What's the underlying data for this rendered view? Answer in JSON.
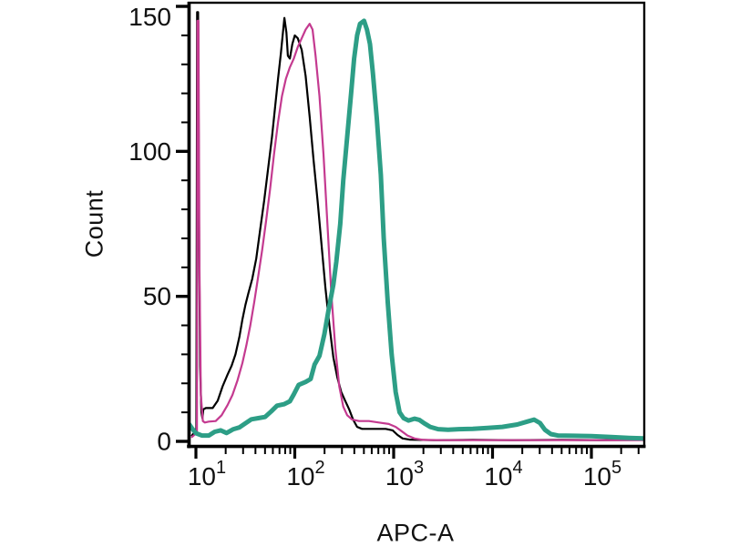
{
  "page": {
    "background": "#ffffff"
  },
  "chart_data": {
    "type": "line",
    "chart_kind": "flow-cytometry-histogram-overlay",
    "title": "",
    "xlabel": "APC-A",
    "ylabel": "Count",
    "x_scale": "log10",
    "x_tick_label_base": "10",
    "x_decade_exponents": [
      1,
      2,
      3,
      4,
      5
    ],
    "x_minor_multiples": [
      2,
      3,
      4,
      5,
      6,
      7,
      8,
      9
    ],
    "xlim_log10": [
      0.926,
      5.576
    ],
    "ylim": [
      0,
      150
    ],
    "y_major_ticks": [
      0,
      50,
      100,
      150
    ],
    "y_minor_step": 10,
    "grid": false,
    "frame": true,
    "legend": null,
    "axis_color": "#000000",
    "tick_label_color": "#111111",
    "series": [
      {
        "name": "black-control",
        "color": "#000000",
        "line_width": 2.2,
        "points_log10x_count": [
          [
            0.96,
            2
          ],
          [
            1.005,
            4
          ],
          [
            1.012,
            148
          ],
          [
            1.022,
            148
          ],
          [
            1.032,
            70
          ],
          [
            1.042,
            26
          ],
          [
            1.055,
            10
          ],
          [
            1.065,
            8
          ],
          [
            1.075,
            11
          ],
          [
            1.1,
            11.5
          ],
          [
            1.17,
            11.5
          ],
          [
            1.22,
            14
          ],
          [
            1.27,
            19
          ],
          [
            1.32,
            23
          ],
          [
            1.36,
            26
          ],
          [
            1.4,
            30
          ],
          [
            1.44,
            36
          ],
          [
            1.47,
            42
          ],
          [
            1.5,
            47
          ],
          [
            1.53,
            51
          ],
          [
            1.57,
            56
          ],
          [
            1.61,
            63
          ],
          [
            1.65,
            73
          ],
          [
            1.69,
            83
          ],
          [
            1.73,
            94
          ],
          [
            1.77,
            105
          ],
          [
            1.8,
            115
          ],
          [
            1.83,
            125
          ],
          [
            1.86,
            134
          ],
          [
            1.88,
            141
          ],
          [
            1.895,
            146
          ],
          [
            1.915,
            141
          ],
          [
            1.93,
            133
          ],
          [
            1.95,
            132
          ],
          [
            1.975,
            137
          ],
          [
            2.0,
            140
          ],
          [
            2.03,
            139
          ],
          [
            2.07,
            135
          ],
          [
            2.11,
            126
          ],
          [
            2.15,
            112
          ],
          [
            2.19,
            97
          ],
          [
            2.23,
            83
          ],
          [
            2.27,
            68
          ],
          [
            2.31,
            53
          ],
          [
            2.35,
            40
          ],
          [
            2.39,
            29
          ],
          [
            2.43,
            22
          ],
          [
            2.47,
            17
          ],
          [
            2.51,
            14
          ],
          [
            2.55,
            11
          ],
          [
            2.59,
            7.5
          ],
          [
            2.63,
            5
          ],
          [
            2.68,
            4.3
          ],
          [
            2.8,
            4.3
          ],
          [
            2.92,
            4.3
          ],
          [
            2.99,
            3.8
          ],
          [
            3.04,
            2.2
          ],
          [
            3.09,
            1
          ],
          [
            3.16,
            0.6
          ],
          [
            3.4,
            0.4
          ],
          [
            3.8,
            0.5
          ],
          [
            4.2,
            0.4
          ],
          [
            4.7,
            0.5
          ],
          [
            5.1,
            0.4
          ],
          [
            5.55,
            0.5
          ]
        ]
      },
      {
        "name": "magenta-sample",
        "color": "#c43a90",
        "line_width": 2.2,
        "points_log10x_count": [
          [
            0.96,
            1.5
          ],
          [
            1.01,
            3
          ],
          [
            1.016,
            145
          ],
          [
            1.026,
            145
          ],
          [
            1.036,
            60
          ],
          [
            1.05,
            16
          ],
          [
            1.07,
            7
          ],
          [
            1.09,
            6.5
          ],
          [
            1.13,
            6.8
          ],
          [
            1.2,
            7
          ],
          [
            1.26,
            9
          ],
          [
            1.32,
            12.5
          ],
          [
            1.37,
            16
          ],
          [
            1.42,
            21
          ],
          [
            1.47,
            27
          ],
          [
            1.51,
            33
          ],
          [
            1.55,
            40
          ],
          [
            1.59,
            48
          ],
          [
            1.63,
            57
          ],
          [
            1.67,
            66
          ],
          [
            1.71,
            76
          ],
          [
            1.75,
            87
          ],
          [
            1.79,
            99
          ],
          [
            1.83,
            110
          ],
          [
            1.87,
            119
          ],
          [
            1.91,
            125
          ],
          [
            1.95,
            129
          ],
          [
            1.99,
            132
          ],
          [
            2.03,
            136
          ],
          [
            2.07,
            139
          ],
          [
            2.11,
            142
          ],
          [
            2.15,
            144
          ],
          [
            2.18,
            142
          ],
          [
            2.21,
            133
          ],
          [
            2.25,
            119
          ],
          [
            2.29,
            99
          ],
          [
            2.33,
            75
          ],
          [
            2.37,
            51
          ],
          [
            2.41,
            32
          ],
          [
            2.45,
            19
          ],
          [
            2.49,
            12
          ],
          [
            2.53,
            9
          ],
          [
            2.58,
            7.5
          ],
          [
            2.65,
            7
          ],
          [
            2.75,
            7
          ],
          [
            2.85,
            6.5
          ],
          [
            2.95,
            6
          ],
          [
            3.02,
            5
          ],
          [
            3.08,
            3.5
          ],
          [
            3.14,
            2
          ],
          [
            3.21,
            1
          ],
          [
            3.3,
            0.5
          ],
          [
            3.5,
            0.4
          ],
          [
            3.9,
            0.4
          ],
          [
            4.4,
            0.4
          ],
          [
            4.9,
            0.4
          ],
          [
            5.4,
            0.4
          ],
          [
            5.55,
            0.4
          ]
        ]
      },
      {
        "name": "teal-sample",
        "color": "#2d9e86",
        "line_width": 5,
        "points_log10x_count": [
          [
            0.93,
            6
          ],
          [
            0.96,
            4.5
          ],
          [
            1.0,
            2.8
          ],
          [
            1.06,
            2
          ],
          [
            1.13,
            2
          ],
          [
            1.19,
            3.3
          ],
          [
            1.25,
            3.8
          ],
          [
            1.31,
            2.9
          ],
          [
            1.38,
            4.2
          ],
          [
            1.44,
            4.8
          ],
          [
            1.5,
            6.2
          ],
          [
            1.56,
            7.6
          ],
          [
            1.63,
            8
          ],
          [
            1.7,
            8.4
          ],
          [
            1.76,
            10.3
          ],
          [
            1.82,
            12.3
          ],
          [
            1.89,
            12.8
          ],
          [
            1.95,
            13.8
          ],
          [
            1.99,
            16.2
          ],
          [
            2.04,
            19.5
          ],
          [
            2.11,
            20.5
          ],
          [
            2.16,
            21.5
          ],
          [
            2.2,
            26.5
          ],
          [
            2.25,
            29.5
          ],
          [
            2.3,
            37
          ],
          [
            2.34,
            45
          ],
          [
            2.39,
            54
          ],
          [
            2.42,
            62
          ],
          [
            2.46,
            75
          ],
          [
            2.49,
            90
          ],
          [
            2.53,
            105
          ],
          [
            2.57,
            120
          ],
          [
            2.6,
            132
          ],
          [
            2.63,
            140
          ],
          [
            2.66,
            144
          ],
          [
            2.7,
            145
          ],
          [
            2.73,
            142
          ],
          [
            2.76,
            137
          ],
          [
            2.79,
            127
          ],
          [
            2.83,
            111
          ],
          [
            2.87,
            92
          ],
          [
            2.9,
            70
          ],
          [
            2.94,
            48
          ],
          [
            2.98,
            30
          ],
          [
            3.02,
            17
          ],
          [
            3.06,
            10
          ],
          [
            3.1,
            8
          ],
          [
            3.15,
            7.2
          ],
          [
            3.21,
            7.8
          ],
          [
            3.26,
            7.4
          ],
          [
            3.31,
            6.2
          ],
          [
            3.37,
            5
          ],
          [
            3.45,
            4.2
          ],
          [
            3.55,
            4
          ],
          [
            3.66,
            4.2
          ],
          [
            3.8,
            4.3
          ],
          [
            3.95,
            4.6
          ],
          [
            4.1,
            5
          ],
          [
            4.25,
            5.8
          ],
          [
            4.35,
            6.8
          ],
          [
            4.42,
            7.5
          ],
          [
            4.48,
            6.3
          ],
          [
            4.53,
            4
          ],
          [
            4.59,
            2.5
          ],
          [
            4.66,
            2
          ],
          [
            4.82,
            1.9
          ],
          [
            5.0,
            1.8
          ],
          [
            5.2,
            1.5
          ],
          [
            5.38,
            1.2
          ],
          [
            5.55,
            1
          ]
        ]
      }
    ]
  }
}
